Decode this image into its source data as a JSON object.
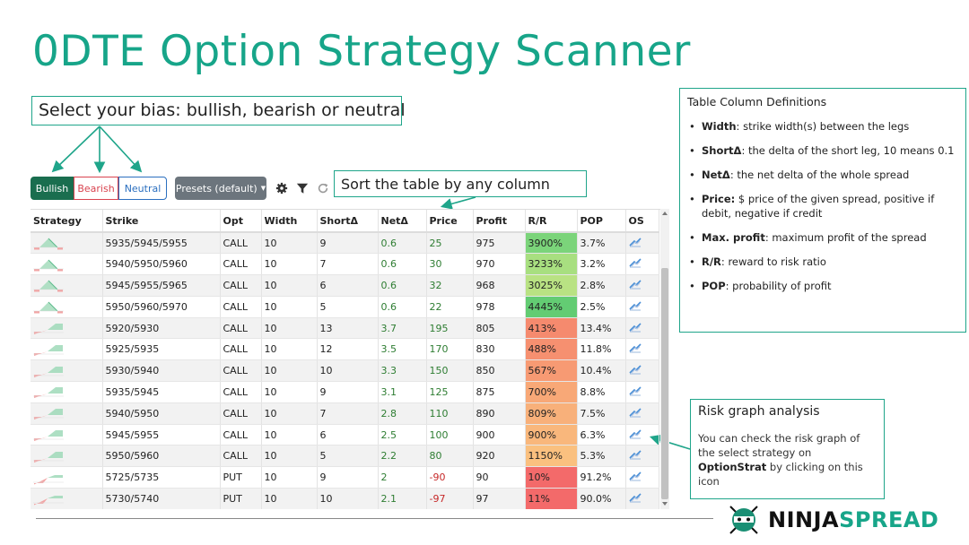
{
  "title": "0DTE Option Strategy Scanner",
  "callouts": {
    "bias": "Select your bias: bullish, bearish or neutral",
    "sort": "Sort the table by any column"
  },
  "bias_buttons": {
    "bullish": "Bullish",
    "bearish": "Bearish",
    "neutral": "Neutral"
  },
  "presets_label": "Presets (default)",
  "icons": [
    "gear-icon",
    "filter-icon",
    "refresh-icon"
  ],
  "table": {
    "headers": [
      "Strategy",
      "Strike",
      "Opt",
      "Width",
      "ShortΔ",
      "NetΔ",
      "Price",
      "Profit",
      "R/R",
      "POP",
      "OS"
    ],
    "rows": [
      {
        "strategy": "butterfly",
        "strike": "5935/5945/5955",
        "opt": "CALL",
        "width": "10",
        "short": "9",
        "net": "0.6",
        "price": "25",
        "profit": "975",
        "rr": "3900%",
        "pop": "3.7%",
        "rr_color": "#7bd47a"
      },
      {
        "strategy": "butterfly",
        "strike": "5940/5950/5960",
        "opt": "CALL",
        "width": "10",
        "short": "7",
        "net": "0.6",
        "price": "30",
        "profit": "970",
        "rr": "3233%",
        "pop": "3.2%",
        "rr_color": "#a8df80"
      },
      {
        "strategy": "butterfly",
        "strike": "5945/5955/5965",
        "opt": "CALL",
        "width": "10",
        "short": "6",
        "net": "0.6",
        "price": "32",
        "profit": "968",
        "rr": "3025%",
        "pop": "2.8%",
        "rr_color": "#b9e283"
      },
      {
        "strategy": "butterfly",
        "strike": "5950/5960/5970",
        "opt": "CALL",
        "width": "10",
        "short": "5",
        "net": "0.6",
        "price": "22",
        "profit": "978",
        "rr": "4445%",
        "pop": "2.5%",
        "rr_color": "#63cc73"
      },
      {
        "strategy": "vertical-bull",
        "strike": "5920/5930",
        "opt": "CALL",
        "width": "10",
        "short": "13",
        "net": "3.7",
        "price": "195",
        "profit": "805",
        "rr": "413%",
        "pop": "13.4%",
        "rr_color": "#f58a6e"
      },
      {
        "strategy": "vertical-bull",
        "strike": "5925/5935",
        "opt": "CALL",
        "width": "10",
        "short": "12",
        "net": "3.5",
        "price": "170",
        "profit": "830",
        "rr": "488%",
        "pop": "11.8%",
        "rr_color": "#f69070"
      },
      {
        "strategy": "vertical-bull",
        "strike": "5930/5940",
        "opt": "CALL",
        "width": "10",
        "short": "10",
        "net": "3.3",
        "price": "150",
        "profit": "850",
        "rr": "567%",
        "pop": "10.4%",
        "rr_color": "#f79a73"
      },
      {
        "strategy": "vertical-bull",
        "strike": "5935/5945",
        "opt": "CALL",
        "width": "10",
        "short": "9",
        "net": "3.1",
        "price": "125",
        "profit": "875",
        "rr": "700%",
        "pop": "8.8%",
        "rr_color": "#f8a877"
      },
      {
        "strategy": "vertical-bull",
        "strike": "5940/5950",
        "opt": "CALL",
        "width": "10",
        "short": "7",
        "net": "2.8",
        "price": "110",
        "profit": "890",
        "rr": "809%",
        "pop": "7.5%",
        "rr_color": "#f8b07a"
      },
      {
        "strategy": "vertical-bull",
        "strike": "5945/5955",
        "opt": "CALL",
        "width": "10",
        "short": "6",
        "net": "2.5",
        "price": "100",
        "profit": "900",
        "rr": "900%",
        "pop": "6.3%",
        "rr_color": "#f9b77c"
      },
      {
        "strategy": "vertical-bull",
        "strike": "5950/5960",
        "opt": "CALL",
        "width": "10",
        "short": "5",
        "net": "2.2",
        "price": "80",
        "profit": "920",
        "rr": "1150%",
        "pop": "5.3%",
        "rr_color": "#fac07f"
      },
      {
        "strategy": "vertical-put",
        "strike": "5725/5735",
        "opt": "PUT",
        "width": "10",
        "short": "9",
        "net": "2",
        "price": "-90",
        "profit": "90",
        "rr": "10%",
        "pop": "91.2%",
        "rr_color": "#f36a6a"
      },
      {
        "strategy": "vertical-put",
        "strike": "5730/5740",
        "opt": "PUT",
        "width": "10",
        "short": "10",
        "net": "2.1",
        "price": "-97",
        "profit": "97",
        "rr": "11%",
        "pop": "90.0%",
        "rr_color": "#f36a6a"
      }
    ]
  },
  "definitions": {
    "title": "Table Column Definitions",
    "items": [
      {
        "term": "Width",
        "text": ": strike width(s) between the legs"
      },
      {
        "term": "ShortΔ",
        "text": ": the delta of the short leg, 10 means 0.1"
      },
      {
        "term": "NetΔ",
        "text": ": the net delta of the whole spread"
      },
      {
        "term": "Price:",
        "text": " $ price of the given spread, positive if debit, negative if credit"
      },
      {
        "term": "Max. profit",
        "text": ": maximum profit of the spread"
      },
      {
        "term": "R/R",
        "text": ": reward to risk ratio"
      },
      {
        "term": "POP",
        "text": ": probability of profit"
      }
    ]
  },
  "risk": {
    "title": "Risk graph analysis",
    "body_pre": "You can check the risk graph of the select strategy on ",
    "body_bold": "OptionStrat",
    "body_post": " by clicking on this icon"
  },
  "logo": {
    "part1": "NINJA",
    "part2": "SPREAD"
  },
  "colors": {
    "accent": "#17a589",
    "bullish": "#1a6e4f",
    "bearish": "#d9434f",
    "neutral": "#2b6fbf",
    "positive": "#2e7d32",
    "negative": "#c62828"
  }
}
